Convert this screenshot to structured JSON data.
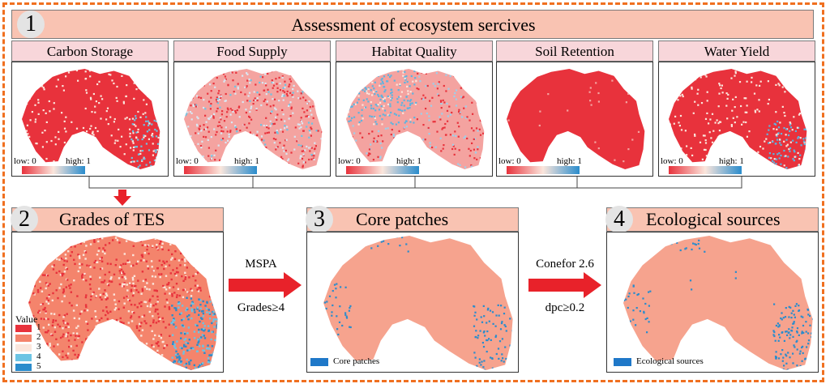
{
  "section1": {
    "number": "1",
    "title": "Assessment of ecosystem sercives"
  },
  "services": [
    {
      "title": "Carbon Storage",
      "low": "low: 0",
      "high": "high: 1"
    },
    {
      "title": "Food Supply",
      "low": "low: 0",
      "high": "high: 1"
    },
    {
      "title": "Habitat Quality",
      "low": "low: 0",
      "high": "high: 1"
    },
    {
      "title": "Soil Retention",
      "low": "low: 0",
      "high": "high: 1"
    },
    {
      "title": "Water Yield",
      "low": "low: 0",
      "high": "high: 1"
    }
  ],
  "section2": {
    "number": "2",
    "title": "Grades of TES",
    "legend_title": "Value",
    "legend": [
      {
        "label": "1",
        "color": "#e8323c"
      },
      {
        "label": "2",
        "color": "#f4846c"
      },
      {
        "label": "3",
        "color": "#fbe6dc"
      },
      {
        "label": "4",
        "color": "#6cc4e4"
      },
      {
        "label": "5",
        "color": "#2a8ccc"
      }
    ]
  },
  "arrow1": {
    "top": "MSPA",
    "bottom": "Grades≥4"
  },
  "section3": {
    "number": "3",
    "title": "Core patches",
    "legend": "Core patches",
    "legend_color": "#1f78c8"
  },
  "arrow2": {
    "top": "Conefor 2.6",
    "bottom": "dpc≥0.2"
  },
  "section4": {
    "number": "4",
    "title": "Ecological sources",
    "legend": "Ecological sources",
    "legend_color": "#1f78c8"
  },
  "colors": {
    "frame": "#f07020",
    "header": "#f9c3b2",
    "subheader": "#f8d6da",
    "arrow": "#e8222a",
    "map_salmon": "#f6a38e",
    "map_red": "#e8323c",
    "map_blue": "#2a8ccc"
  }
}
